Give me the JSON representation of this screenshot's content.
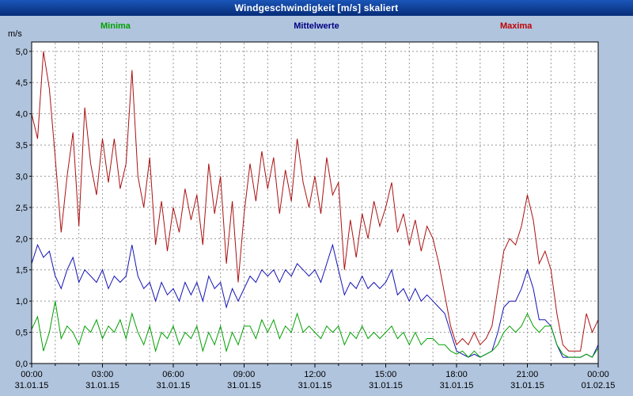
{
  "window": {
    "title": "Windgeschwindigkeit [m/s] skaliert"
  },
  "colors": {
    "page_bg": "#b0c4de",
    "titlebar_top": "#1a55b8",
    "titlebar_bottom": "#072d78",
    "plot_bg": "#ffffff",
    "plot_border": "#000000",
    "grid": "#999999",
    "axis_text": "#000000",
    "minima": "#00a000",
    "mittelwerte": "#1414b4",
    "maxima": "#aa1111"
  },
  "legend": [
    {
      "label": "Minima",
      "color": "#00a000"
    },
    {
      "label": "Mittelwerte",
      "color": "#000080"
    },
    {
      "label": "Maxima",
      "color": "#c00000"
    }
  ],
  "chart_data": {
    "type": "line",
    "title": "Windgeschwindigkeit [m/s] skaliert",
    "ylabel": "m/s",
    "xlabel": "",
    "ylim": [
      0,
      5.15
    ],
    "grid": true,
    "x_hours_start": 0,
    "x_hours_end": 24,
    "x_step_hours": 0.25,
    "grid_hours_step": 1,
    "y_ticks": [
      {
        "v": 0.0,
        "label": "0,0"
      },
      {
        "v": 0.5,
        "label": "0,5"
      },
      {
        "v": 1.0,
        "label": "1,0"
      },
      {
        "v": 1.5,
        "label": "1,5"
      },
      {
        "v": 2.0,
        "label": "2,0"
      },
      {
        "v": 2.5,
        "label": "2,5"
      },
      {
        "v": 3.0,
        "label": "3,0"
      },
      {
        "v": 3.5,
        "label": "3,5"
      },
      {
        "v": 4.0,
        "label": "4,0"
      },
      {
        "v": 4.5,
        "label": "4,5"
      },
      {
        "v": 5.0,
        "label": "5,0"
      }
    ],
    "x_ticks": [
      {
        "h": 0,
        "label": "00:00",
        "date": "31.01.15"
      },
      {
        "h": 3,
        "label": "03:00",
        "date": "31.01.15"
      },
      {
        "h": 6,
        "label": "06:00",
        "date": "31.01.15"
      },
      {
        "h": 9,
        "label": "09:00",
        "date": "31.01.15"
      },
      {
        "h": 12,
        "label": "12:00",
        "date": "31.01.15"
      },
      {
        "h": 15,
        "label": "15:00",
        "date": "31.01.15"
      },
      {
        "h": 18,
        "label": "18:00",
        "date": "31.01.15"
      },
      {
        "h": 21,
        "label": "21:00",
        "date": "31.01.15"
      },
      {
        "h": 24,
        "label": "00:00",
        "date": "01.02.15"
      }
    ],
    "series": [
      {
        "name": "Maxima",
        "color": "#aa1111",
        "values": [
          4.0,
          3.6,
          5.0,
          4.4,
          3.3,
          2.1,
          3.0,
          3.7,
          2.2,
          4.1,
          3.2,
          2.7,
          3.6,
          2.9,
          3.6,
          2.8,
          3.2,
          4.7,
          3.0,
          2.5,
          3.3,
          1.9,
          2.6,
          1.8,
          2.5,
          2.1,
          2.8,
          2.3,
          2.7,
          1.9,
          3.2,
          2.4,
          3.0,
          1.6,
          2.6,
          1.3,
          2.4,
          3.2,
          2.6,
          3.4,
          2.8,
          3.3,
          2.4,
          3.1,
          2.6,
          3.6,
          2.9,
          2.5,
          3.0,
          2.4,
          3.3,
          2.7,
          2.9,
          1.5,
          2.3,
          1.7,
          2.4,
          2.0,
          2.6,
          2.2,
          2.5,
          2.9,
          2.1,
          2.4,
          1.9,
          2.3,
          1.8,
          2.2,
          2.0,
          1.6,
          1.1,
          0.6,
          0.3,
          0.4,
          0.3,
          0.5,
          0.3,
          0.4,
          0.6,
          1.2,
          1.8,
          2.0,
          1.9,
          2.2,
          2.7,
          2.3,
          1.6,
          1.8,
          1.5,
          0.8,
          0.3,
          0.2,
          0.2,
          0.2,
          0.8,
          0.5,
          0.7
        ]
      },
      {
        "name": "Mittelwerte",
        "color": "#1414b4",
        "values": [
          1.6,
          1.9,
          1.7,
          1.8,
          1.4,
          1.2,
          1.5,
          1.7,
          1.3,
          1.5,
          1.4,
          1.3,
          1.5,
          1.2,
          1.4,
          1.3,
          1.4,
          1.9,
          1.4,
          1.2,
          1.3,
          1.0,
          1.3,
          1.1,
          1.2,
          1.0,
          1.3,
          1.1,
          1.3,
          1.0,
          1.4,
          1.2,
          1.3,
          0.9,
          1.2,
          1.0,
          1.2,
          1.4,
          1.3,
          1.5,
          1.4,
          1.5,
          1.3,
          1.5,
          1.4,
          1.6,
          1.5,
          1.4,
          1.5,
          1.3,
          1.6,
          1.9,
          1.5,
          1.1,
          1.3,
          1.2,
          1.4,
          1.2,
          1.3,
          1.2,
          1.3,
          1.5,
          1.1,
          1.2,
          1.0,
          1.2,
          1.0,
          1.1,
          1.0,
          0.9,
          0.8,
          0.5,
          0.2,
          0.15,
          0.1,
          0.15,
          0.1,
          0.15,
          0.2,
          0.5,
          0.9,
          1.0,
          1.0,
          1.2,
          1.5,
          1.2,
          0.7,
          0.7,
          0.6,
          0.3,
          0.1,
          0.1,
          0.1,
          0.1,
          0.15,
          0.1,
          0.3
        ]
      },
      {
        "name": "Minima",
        "color": "#00a000",
        "values": [
          0.55,
          0.75,
          0.2,
          0.5,
          1.0,
          0.4,
          0.6,
          0.5,
          0.3,
          0.6,
          0.5,
          0.7,
          0.4,
          0.6,
          0.5,
          0.7,
          0.4,
          0.8,
          0.5,
          0.3,
          0.6,
          0.2,
          0.5,
          0.4,
          0.6,
          0.3,
          0.5,
          0.4,
          0.6,
          0.2,
          0.5,
          0.3,
          0.6,
          0.2,
          0.5,
          0.3,
          0.6,
          0.6,
          0.4,
          0.7,
          0.5,
          0.7,
          0.4,
          0.6,
          0.5,
          0.8,
          0.5,
          0.6,
          0.5,
          0.4,
          0.6,
          0.5,
          0.6,
          0.3,
          0.5,
          0.4,
          0.6,
          0.4,
          0.5,
          0.4,
          0.5,
          0.6,
          0.4,
          0.5,
          0.3,
          0.5,
          0.3,
          0.4,
          0.4,
          0.3,
          0.3,
          0.2,
          0.15,
          0.2,
          0.1,
          0.2,
          0.1,
          0.15,
          0.2,
          0.3,
          0.5,
          0.6,
          0.5,
          0.6,
          0.8,
          0.6,
          0.5,
          0.6,
          0.6,
          0.3,
          0.15,
          0.1,
          0.1,
          0.1,
          0.15,
          0.1,
          0.25
        ]
      }
    ]
  }
}
